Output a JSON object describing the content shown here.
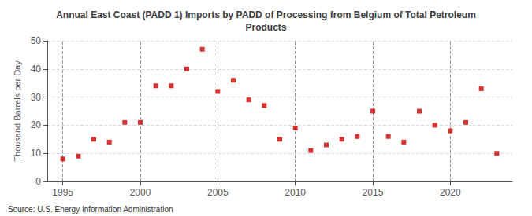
{
  "chart_data": {
    "type": "scatter",
    "title": "Annual East Coast (PADD 1) Imports by PADD of Processing from Belgium of Total Petroleum\nProducts",
    "ylabel": "Thousand Barrels per Day",
    "source": "Source: U.S. Energy Information Administration",
    "x": [
      1995,
      1996,
      1997,
      1998,
      1999,
      2000,
      2001,
      2002,
      2003,
      2004,
      2005,
      2006,
      2007,
      2008,
      2009,
      2010,
      2011,
      2012,
      2013,
      2014,
      2015,
      2016,
      2017,
      2018,
      2019,
      2020,
      2021,
      2022,
      2023
    ],
    "values": [
      8,
      9,
      15,
      14,
      21,
      21,
      34,
      34,
      40,
      47,
      32,
      36,
      29,
      27,
      15,
      19,
      11,
      13,
      15,
      16,
      25,
      16,
      14,
      25,
      20,
      18,
      21,
      33,
      10
    ],
    "color": "#cc0000",
    "marker": "square",
    "xlim": [
      1994,
      2024
    ],
    "ylim": [
      0,
      50
    ],
    "xticks": [
      1995,
      2000,
      2005,
      2010,
      2015,
      2020
    ],
    "yticks": [
      0,
      10,
      20,
      30,
      40,
      50
    ],
    "grid": true
  }
}
